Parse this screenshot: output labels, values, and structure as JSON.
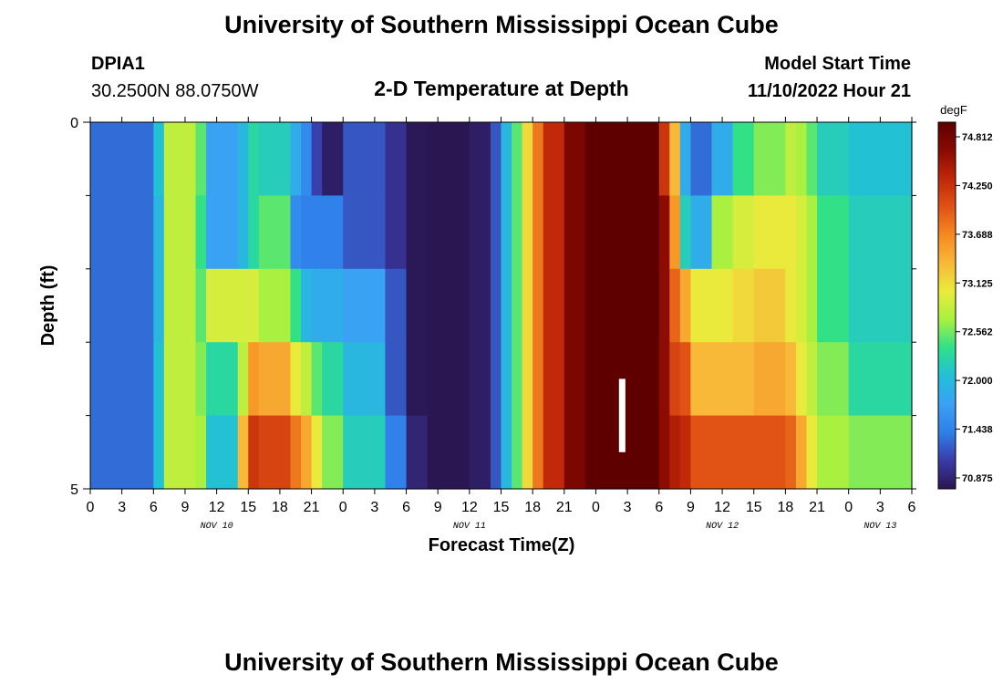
{
  "header": {
    "title": "University of Southern Mississippi Ocean Cube",
    "station": "DPIA1",
    "coords": "30.2500N  88.0750W",
    "subtitle": "2-D Temperature at Depth",
    "model_start_label": "Model Start Time",
    "model_start_value": "11/10/2022 Hour 21"
  },
  "footer": {
    "title": "University of Southern Mississippi Ocean Cube"
  },
  "chart_data": {
    "type": "heatmap",
    "title": "2-D Temperature at Depth",
    "xlabel": "Forecast Time(Z)",
    "ylabel": "Depth (ft)",
    "x_tick_labels": [
      "0",
      "3",
      "6",
      "9",
      "12",
      "15",
      "18",
      "21",
      "0",
      "3",
      "6",
      "9",
      "12",
      "15",
      "18",
      "21",
      "0",
      "3",
      "6",
      "9",
      "12",
      "15",
      "18",
      "21",
      "0",
      "3",
      "6"
    ],
    "day_labels": [
      {
        "label": "NOV 10",
        "hour": 12
      },
      {
        "label": "NOV 11",
        "hour": 36
      },
      {
        "label": "NOV 12",
        "hour": 60
      },
      {
        "label": "NOV 13",
        "hour": 75
      }
    ],
    "x_range_hours": [
      0,
      78
    ],
    "y_tick_labels": [
      "0",
      "5"
    ],
    "y_range_ft": [
      0,
      5
    ],
    "depth_levels_ft": [
      0.5,
      1.5,
      2.5,
      3.5,
      4.5
    ],
    "colorbar": {
      "unit": "degF",
      "min": 70.875,
      "max": 74.812,
      "tick_labels": [
        "74.812",
        "74.250",
        "73.688",
        "73.125",
        "72.562",
        "72.000",
        "71.438",
        "70.875"
      ],
      "colors": [
        "#2a1550",
        "#3a3ba8",
        "#2f7fe8",
        "#3aa0f5",
        "#22c0d8",
        "#2ee08a",
        "#a8f040",
        "#eaeb3c",
        "#f8b838",
        "#f58a22",
        "#e05215",
        "#c02808",
        "#8a0a02",
        "#5c0000"
      ]
    },
    "annotation": {
      "hour": 50.5,
      "depth_from_ft": 3.5,
      "depth_to_ft": 4.5,
      "color": "#ffffff"
    },
    "segments": [
      {
        "from": 0,
        "to": 6,
        "values": [
          71.4,
          71.4,
          71.4,
          71.4,
          71.4
        ]
      },
      {
        "from": 6,
        "to": 7,
        "values": [
          72.1,
          72.0,
          72.0,
          72.1,
          72.1
        ]
      },
      {
        "from": 7,
        "to": 10,
        "values": [
          72.8,
          72.8,
          72.8,
          72.8,
          72.8
        ]
      },
      {
        "from": 10,
        "to": 11,
        "values": [
          72.5,
          72.4,
          72.5,
          72.6,
          72.7
        ]
      },
      {
        "from": 11,
        "to": 14,
        "values": [
          71.8,
          71.8,
          72.9,
          72.3,
          72.1
        ]
      },
      {
        "from": 14,
        "to": 15,
        "values": [
          72.0,
          72.0,
          72.9,
          72.8,
          73.3
        ]
      },
      {
        "from": 15,
        "to": 16,
        "values": [
          72.3,
          72.3,
          72.9,
          73.5,
          74.1
        ]
      },
      {
        "from": 16,
        "to": 19,
        "values": [
          72.2,
          72.5,
          72.7,
          73.4,
          74.0
        ]
      },
      {
        "from": 19,
        "to": 20,
        "values": [
          71.9,
          71.6,
          72.4,
          73.0,
          73.7
        ]
      },
      {
        "from": 20,
        "to": 21,
        "values": [
          71.6,
          71.5,
          72.0,
          72.8,
          73.4
        ]
      },
      {
        "from": 21,
        "to": 22,
        "values": [
          71.2,
          71.5,
          71.9,
          72.5,
          73.0
        ]
      },
      {
        "from": 22,
        "to": 24,
        "values": [
          70.95,
          71.5,
          71.9,
          72.3,
          72.6
        ]
      },
      {
        "from": 24,
        "to": 28,
        "values": [
          71.3,
          71.3,
          71.8,
          72.0,
          72.2
        ]
      },
      {
        "from": 28,
        "to": 30,
        "values": [
          71.1,
          71.1,
          71.3,
          71.3,
          71.5
        ]
      },
      {
        "from": 30,
        "to": 32,
        "values": [
          70.9,
          70.9,
          70.9,
          70.9,
          71.0
        ]
      },
      {
        "from": 32,
        "to": 36,
        "values": [
          70.88,
          70.88,
          70.88,
          70.88,
          70.88
        ]
      },
      {
        "from": 36,
        "to": 38,
        "values": [
          70.95,
          70.95,
          70.95,
          70.95,
          70.95
        ]
      },
      {
        "from": 38,
        "to": 39,
        "values": [
          71.3,
          71.3,
          71.3,
          71.3,
          71.3
        ]
      },
      {
        "from": 39,
        "to": 40,
        "values": [
          72.0,
          72.0,
          72.0,
          72.0,
          72.0
        ]
      },
      {
        "from": 40,
        "to": 41,
        "values": [
          72.5,
          72.5,
          72.5,
          72.5,
          72.5
        ]
      },
      {
        "from": 41,
        "to": 42,
        "values": [
          73.1,
          73.1,
          73.1,
          73.1,
          73.1
        ]
      },
      {
        "from": 42,
        "to": 43,
        "values": [
          73.7,
          73.7,
          73.7,
          73.7,
          73.7
        ]
      },
      {
        "from": 43,
        "to": 45,
        "values": [
          74.2,
          74.2,
          74.2,
          74.2,
          74.2
        ]
      },
      {
        "from": 45,
        "to": 47,
        "values": [
          74.6,
          74.6,
          74.6,
          74.6,
          74.6
        ]
      },
      {
        "from": 47,
        "to": 54,
        "values": [
          74.8,
          74.8,
          74.8,
          74.8,
          74.8
        ]
      },
      {
        "from": 54,
        "to": 55,
        "values": [
          74.1,
          74.5,
          74.5,
          74.5,
          74.5
        ]
      },
      {
        "from": 55,
        "to": 56,
        "values": [
          73.3,
          73.5,
          73.8,
          74.0,
          74.3
        ]
      },
      {
        "from": 56,
        "to": 57,
        "values": [
          71.9,
          72.2,
          73.4,
          73.9,
          74.2
        ]
      },
      {
        "from": 57,
        "to": 59,
        "values": [
          71.4,
          71.9,
          73.0,
          73.3,
          73.9
        ]
      },
      {
        "from": 59,
        "to": 61,
        "values": [
          71.9,
          72.7,
          73.0,
          73.3,
          73.9
        ]
      },
      {
        "from": 61,
        "to": 63,
        "values": [
          72.4,
          72.9,
          73.1,
          73.3,
          73.9
        ]
      },
      {
        "from": 63,
        "to": 66,
        "values": [
          72.6,
          73.0,
          73.2,
          73.4,
          73.9
        ]
      },
      {
        "from": 66,
        "to": 67,
        "values": [
          72.8,
          73.0,
          73.0,
          73.3,
          73.8
        ]
      },
      {
        "from": 67,
        "to": 68,
        "values": [
          72.7,
          72.9,
          72.9,
          73.0,
          73.4
        ]
      },
      {
        "from": 68,
        "to": 69,
        "values": [
          72.5,
          72.7,
          72.7,
          72.8,
          73.0
        ]
      },
      {
        "from": 69,
        "to": 72,
        "values": [
          72.2,
          72.4,
          72.4,
          72.6,
          72.7
        ]
      },
      {
        "from": 72,
        "to": 78,
        "values": [
          72.1,
          72.2,
          72.2,
          72.3,
          72.6
        ]
      }
    ]
  }
}
